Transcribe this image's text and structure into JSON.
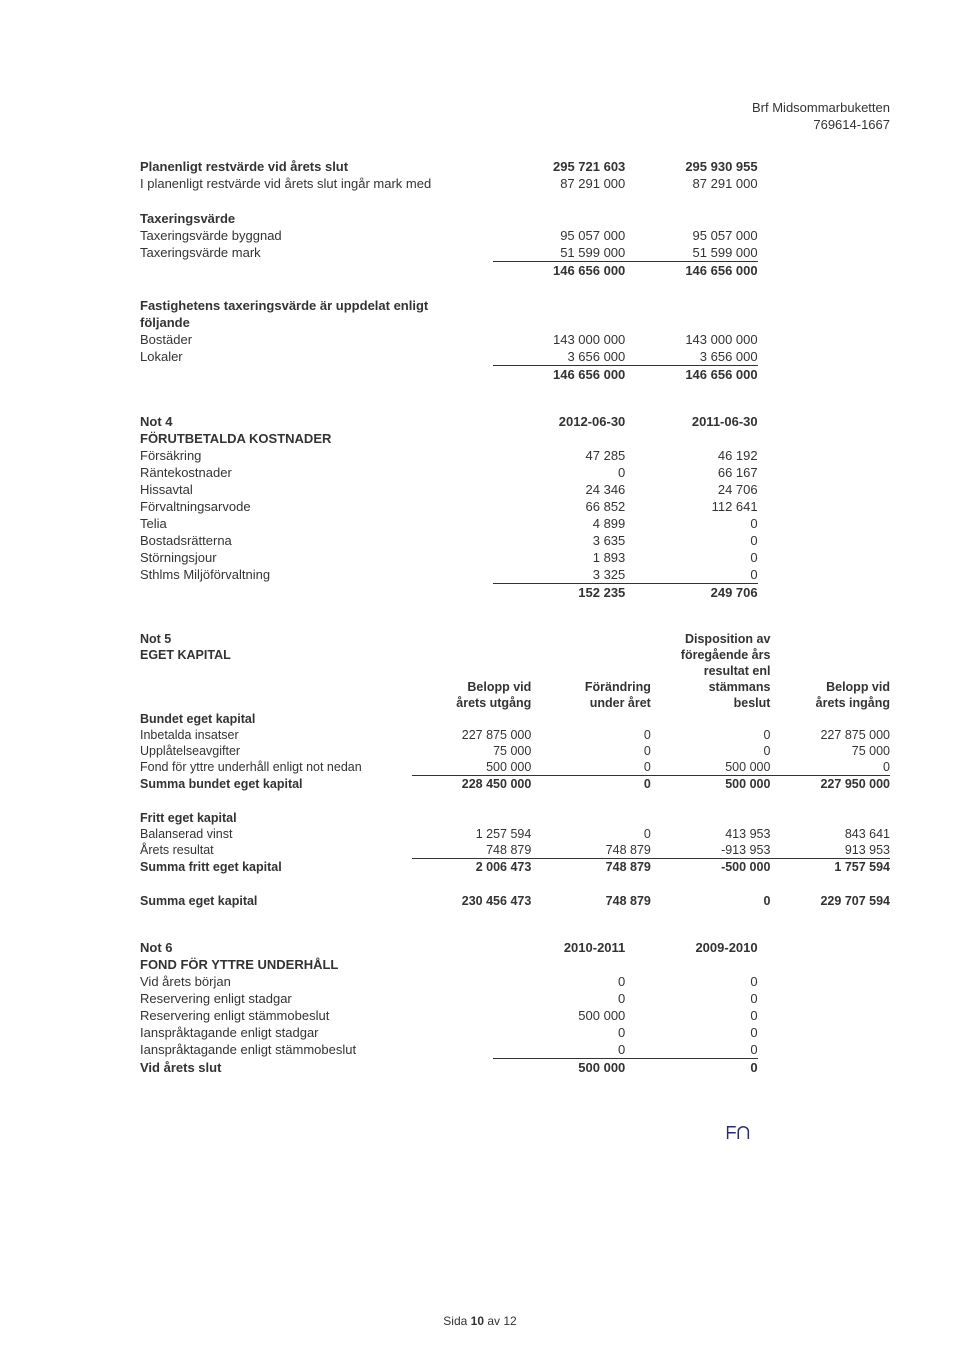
{
  "header": {
    "org_name": "Brf Midsommarbuketten",
    "org_no": "769614-1667"
  },
  "sec1": {
    "rows": [
      {
        "label": "Planenligt restvärde vid årets slut",
        "c1": "295 721 603",
        "c2": "295 930 955",
        "bold": true
      },
      {
        "label": "I planenligt restvärde vid årets slut ingår mark med",
        "c1": "87 291 000",
        "c2": "87 291 000"
      }
    ]
  },
  "sec2": {
    "title": "Taxeringsvärde",
    "rows": [
      {
        "label": "Taxeringsvärde byggnad",
        "c1": "95 057 000",
        "c2": "95 057 000"
      },
      {
        "label": "Taxeringsvärde mark",
        "c1": "51 599 000",
        "c2": "51 599 000",
        "sumbelow": true
      }
    ],
    "total": {
      "c1": "146 656 000",
      "c2": "146 656 000"
    }
  },
  "sec3": {
    "title1": "Fastighetens taxeringsvärde är uppdelat enligt",
    "title2": "följande",
    "rows": [
      {
        "label": "Bostäder",
        "c1": "143 000 000",
        "c2": "143 000 000"
      },
      {
        "label": "Lokaler",
        "c1": "3 656 000",
        "c2": "3 656 000",
        "sumbelow": true
      }
    ],
    "total": {
      "c1": "146 656 000",
      "c2": "146 656 000"
    }
  },
  "not4": {
    "title": "Not 4",
    "subtitle": "FÖRUTBETALDA KOSTNADER",
    "h1": "2012-06-30",
    "h2": "2011-06-30",
    "rows": [
      {
        "label": "Försäkring",
        "c1": "47 285",
        "c2": "46 192"
      },
      {
        "label": "Räntekostnader",
        "c1": "0",
        "c2": "66 167"
      },
      {
        "label": "Hissavtal",
        "c1": "24 346",
        "c2": "24 706"
      },
      {
        "label": "Förvaltningsarvode",
        "c1": "66 852",
        "c2": "112 641"
      },
      {
        "label": "Telia",
        "c1": "4 899",
        "c2": "0"
      },
      {
        "label": "Bostadsrätterna",
        "c1": "3 635",
        "c2": "0"
      },
      {
        "label": "Störningsjour",
        "c1": "1 893",
        "c2": "0"
      },
      {
        "label": "Sthlms Miljöförvaltning",
        "c1": "3 325",
        "c2": "0",
        "sumbelow": true
      }
    ],
    "total": {
      "c1": "152 235",
      "c2": "249 706"
    }
  },
  "not5": {
    "title": "Not 5",
    "subtitle": "EGET KAPITAL",
    "headers": {
      "c1a": "Belopp vid",
      "c1b": "årets utgång",
      "c2a": "Förändring",
      "c2b": "under året",
      "c3a1": "Disposition av",
      "c3a2": "föregående års",
      "c3a3": "resultat enl",
      "c3a4": "stämmans",
      "c3b": "beslut",
      "c4a": "Belopp vid",
      "c4b": "årets ingång"
    },
    "group1": {
      "title": "Bundet eget kapital",
      "rows": [
        {
          "label": "Inbetalda insatser",
          "c1": "227 875 000",
          "c2": "0",
          "c3": "0",
          "c4": "227 875 000"
        },
        {
          "label": "Upplåtelseavgifter",
          "c1": "75 000",
          "c2": "0",
          "c3": "0",
          "c4": "75 000"
        },
        {
          "label": "Fond för yttre underhåll enligt not nedan",
          "c1": "500 000",
          "c2": "0",
          "c3": "500 000",
          "c4": "0",
          "sumbelow": true
        }
      ],
      "total": {
        "label": "Summa bundet eget kapital",
        "c1": "228 450 000",
        "c2": "0",
        "c3": "500 000",
        "c4": "227 950 000"
      }
    },
    "group2": {
      "title": "Fritt eget kapital",
      "rows": [
        {
          "label": "Balanserad vinst",
          "c1": "1 257 594",
          "c2": "0",
          "c3": "413 953",
          "c4": "843 641"
        },
        {
          "label": "Årets resultat",
          "c1": "748 879",
          "c2": "748 879",
          "c3": "-913 953",
          "c4": "913 953",
          "sumbelow": true
        }
      ],
      "total": {
        "label": "Summa fritt eget kapital",
        "c1": "2 006 473",
        "c2": "748 879",
        "c3": "-500 000",
        "c4": "1 757 594"
      }
    },
    "grand": {
      "label": "Summa eget kapital",
      "c1": "230 456 473",
      "c2": "748 879",
      "c3": "0",
      "c4": "229 707 594"
    }
  },
  "not6": {
    "title": "Not 6",
    "subtitle": "FOND FÖR YTTRE UNDERHÅLL",
    "h1": "2010-2011",
    "h2": "2009-2010",
    "rows": [
      {
        "label": "Vid årets början",
        "c1": "0",
        "c2": "0"
      },
      {
        "label": "Reservering enligt stadgar",
        "c1": "0",
        "c2": "0"
      },
      {
        "label": "Reservering enligt stämmobeslut",
        "c1": "500 000",
        "c2": "0"
      },
      {
        "label": "Ianspråktagande enligt stadgar",
        "c1": "0",
        "c2": "0"
      },
      {
        "label": "Ianspråktagande enligt stämmobeslut",
        "c1": "0",
        "c2": "0",
        "sumbelow": true
      }
    ],
    "total": {
      "label": "Vid årets slut",
      "c1": "500 000",
      "c2": "0"
    }
  },
  "footer": {
    "prefix": "Sida ",
    "page": "10",
    "mid": " av ",
    "total": "12"
  },
  "initials": "ᖴᑎ"
}
